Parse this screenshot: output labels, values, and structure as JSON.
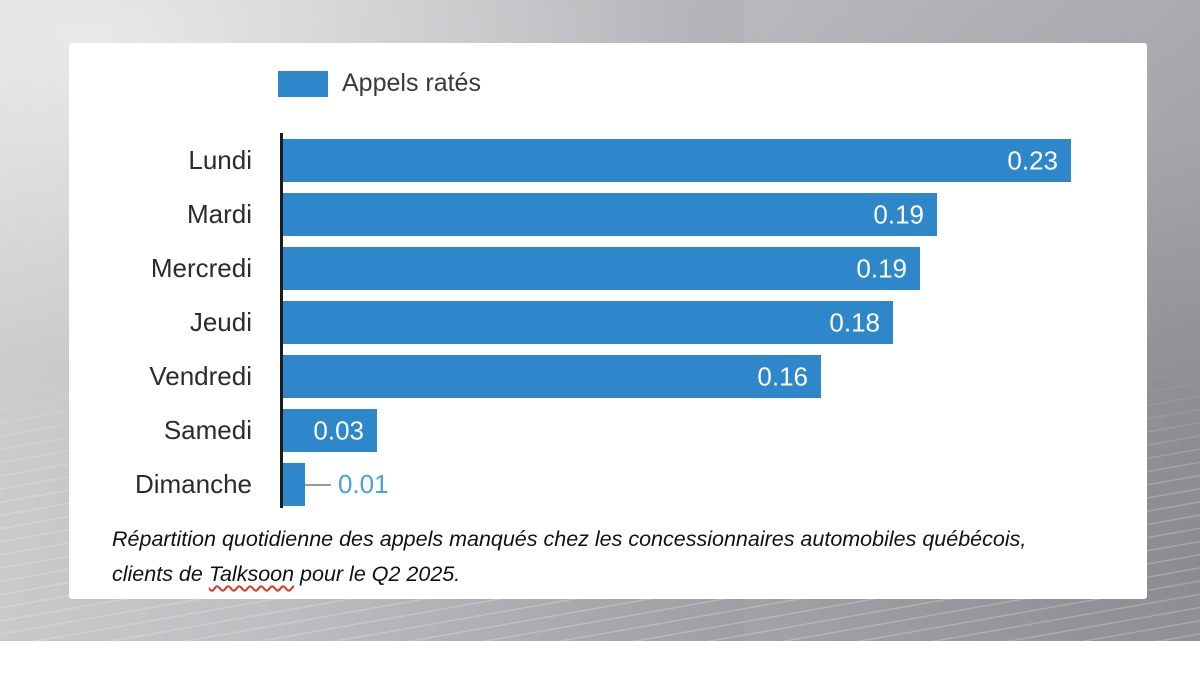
{
  "legend": {
    "label": "Appels ratés"
  },
  "chart_data": {
    "type": "bar",
    "orientation": "horizontal",
    "title": "",
    "xlabel": "",
    "ylabel": "",
    "grid": false,
    "legend_entries": [
      "Appels ratés"
    ],
    "legend_position": "top",
    "categories": [
      "Lundi",
      "Mardi",
      "Mercredi",
      "Jeudi",
      "Vendredi",
      "Samedi",
      "Dimanche"
    ],
    "values": [
      0.23,
      0.19,
      0.19,
      0.18,
      0.16,
      0.03,
      0.01
    ],
    "value_labels": [
      "0.23",
      "0.19",
      "0.19",
      "0.18",
      "0.16",
      "0.03",
      "0.01"
    ],
    "precise_values": [
      0.23,
      0.191,
      0.186,
      0.178,
      0.157,
      0.0275,
      0.0065
    ],
    "xlim": [
      0,
      0.253
    ]
  },
  "caption": {
    "line1": "Répartition quotidienne des appels manqués chez les concessionnaires automobiles québécois,",
    "line2_prefix": "clients de ",
    "misspelled_word": "Talksoon",
    "line2_suffix": " pour le Q2 2025."
  },
  "colors": {
    "bar": "#2e86cb",
    "bar_value": "#ffffff",
    "outside_value": "#4c9fdb",
    "leader": "#999999",
    "axis": "#1c1c1c",
    "day_label": "#2b2b2b",
    "legend_text": "#3a3a3a",
    "caption": "#111111",
    "squiggle": "#e0352b",
    "card": "#ffffff"
  }
}
